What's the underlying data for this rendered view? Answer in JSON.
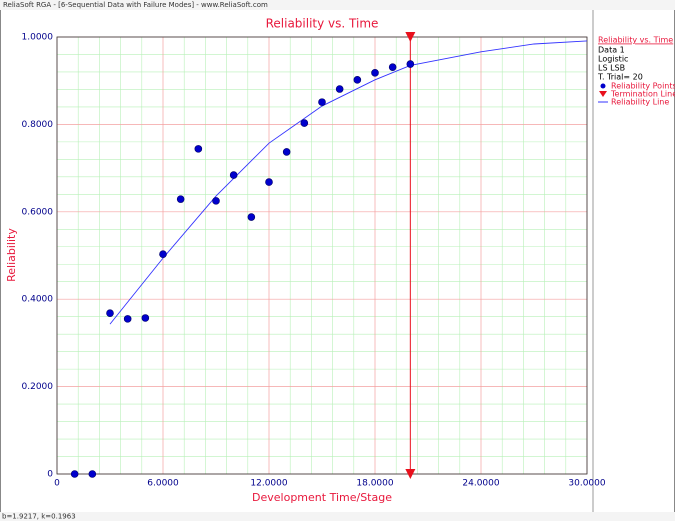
{
  "window_title": "ReliaSoft RGA - [6-Sequential Data with Failure Modes] - www.ReliaSoft.com",
  "status_text": "b=1.9217, k=0.1963",
  "chart_data": {
    "type": "scatter",
    "title": "Reliability vs. Time",
    "xlabel": "Development Time/Stage",
    "ylabel": "Reliability",
    "xlim": [
      0,
      30
    ],
    "ylim": [
      0,
      1
    ],
    "xticks": [
      0,
      {
        "value": 6,
        "label": "6.0000"
      },
      {
        "value": 12,
        "label": "12.0000"
      },
      {
        "value": 18,
        "label": "18.0000"
      },
      {
        "value": 24,
        "label": "24.0000"
      },
      {
        "value": 30,
        "label": "30.0000"
      }
    ],
    "yticks": [
      0,
      {
        "value": 0.2,
        "label": "0.2000"
      },
      {
        "value": 0.4,
        "label": "0.4000"
      },
      {
        "value": 0.6,
        "label": "0.6000"
      },
      {
        "value": 0.8,
        "label": "0.8000"
      },
      {
        "value": 1,
        "label": "1.0000"
      }
    ],
    "grid": true,
    "minor_divisions": 5,
    "legend_title": "Reliability vs. Time",
    "legend_info": [
      "Data 1",
      "Logistic",
      "LS LSB",
      "T. Trial= 20"
    ],
    "series": [
      {
        "name": "Reliability Points",
        "kind": "points",
        "color": "#0000cc",
        "x": [
          1,
          2,
          3,
          4,
          5,
          6,
          7,
          8,
          9,
          10,
          11,
          12,
          13,
          14,
          15,
          16,
          17,
          18,
          19,
          20
        ],
        "values": [
          0,
          0,
          0.368,
          0.355,
          0.357,
          0.503,
          0.629,
          0.744,
          0.625,
          0.684,
          0.588,
          0.668,
          0.737,
          0.803,
          0.851,
          0.881,
          0.902,
          0.918,
          0.931,
          0.938
        ]
      },
      {
        "name": "Termination Line",
        "kind": "termination",
        "color": "#e8101c",
        "x": [
          20
        ]
      },
      {
        "name": "Reliability Line",
        "kind": "line",
        "color": "#3333ff",
        "x": [
          3,
          6,
          9,
          12,
          15,
          18,
          20,
          24,
          27,
          30
        ],
        "values": [
          0.343,
          0.494,
          0.636,
          0.757,
          0.842,
          0.902,
          0.935,
          0.966,
          0.984,
          0.991
        ]
      }
    ]
  }
}
